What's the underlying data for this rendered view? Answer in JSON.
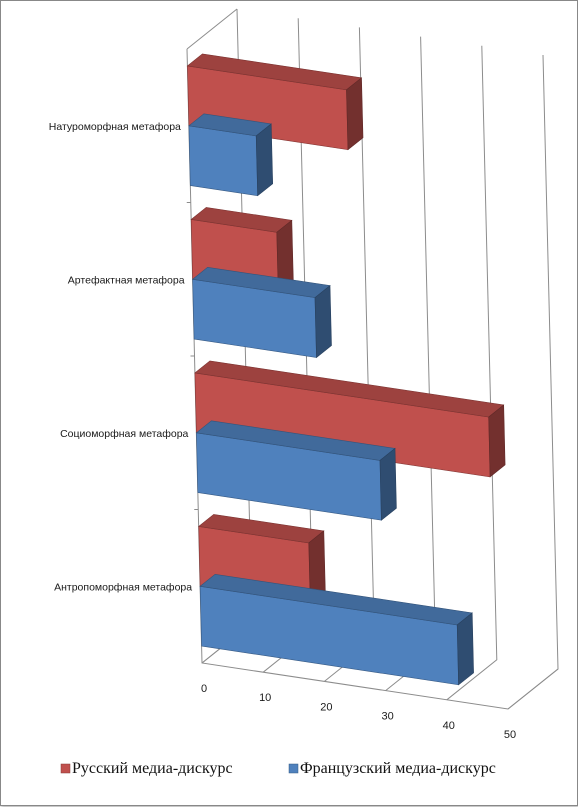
{
  "chart_data": {
    "type": "bar",
    "orientation": "horizontal",
    "style": "3d-clustered",
    "categories": [
      "Антропоморфная метафора",
      "Социоморфная метафора",
      "Артефактная метафора",
      "Натуроморфная метафора"
    ],
    "series": [
      {
        "name": "Русский медиа-дискурс",
        "color": "#c0504d",
        "values": [
          18,
          48,
          14,
          26
        ]
      },
      {
        "name": "Французский медиа-дискурс",
        "color": "#4f81bd",
        "values": [
          42,
          30,
          20,
          11
        ]
      }
    ],
    "xlim": [
      0,
      50
    ],
    "x_ticks": [
      "0",
      "10",
      "20",
      "30",
      "40",
      "50"
    ],
    "grid": true,
    "legend_position": "bottom"
  }
}
